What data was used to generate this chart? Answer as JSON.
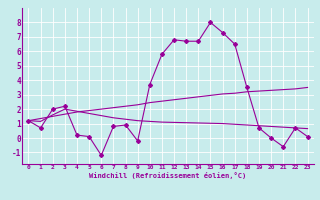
{
  "xlabel": "Windchill (Refroidissement éolien,°C)",
  "bg_color": "#c8ecec",
  "line_color": "#990099",
  "x_hours": [
    0,
    1,
    2,
    3,
    4,
    5,
    6,
    7,
    8,
    9,
    10,
    11,
    12,
    13,
    14,
    15,
    16,
    17,
    18,
    19,
    20,
    21,
    22,
    23
  ],
  "windchill": [
    1.2,
    0.7,
    2.0,
    2.2,
    0.2,
    0.1,
    -1.2,
    0.8,
    0.9,
    -0.2,
    3.7,
    5.8,
    6.8,
    6.7,
    6.7,
    8.0,
    7.3,
    6.5,
    3.5,
    0.7,
    0.0,
    -0.6,
    0.7,
    0.1
  ],
  "trend_up": [
    1.2,
    1.35,
    1.5,
    1.65,
    1.8,
    1.9,
    2.0,
    2.1,
    2.2,
    2.3,
    2.45,
    2.55,
    2.65,
    2.75,
    2.85,
    2.95,
    3.05,
    3.1,
    3.2,
    3.25,
    3.3,
    3.35,
    3.4,
    3.5
  ],
  "trend_down": [
    1.2,
    1.15,
    1.6,
    2.0,
    1.85,
    1.7,
    1.55,
    1.4,
    1.3,
    1.2,
    1.15,
    1.1,
    1.08,
    1.06,
    1.04,
    1.02,
    1.0,
    0.95,
    0.9,
    0.85,
    0.8,
    0.75,
    0.7,
    0.65
  ],
  "ylim": [
    -1.8,
    9.0
  ],
  "xlim": [
    -0.5,
    23.5
  ],
  "yticks": [
    -1,
    0,
    1,
    2,
    3,
    4,
    5,
    6,
    7,
    8
  ],
  "xticks": [
    0,
    1,
    2,
    3,
    4,
    5,
    6,
    7,
    8,
    9,
    10,
    11,
    12,
    13,
    14,
    15,
    16,
    17,
    18,
    19,
    20,
    21,
    22,
    23
  ]
}
